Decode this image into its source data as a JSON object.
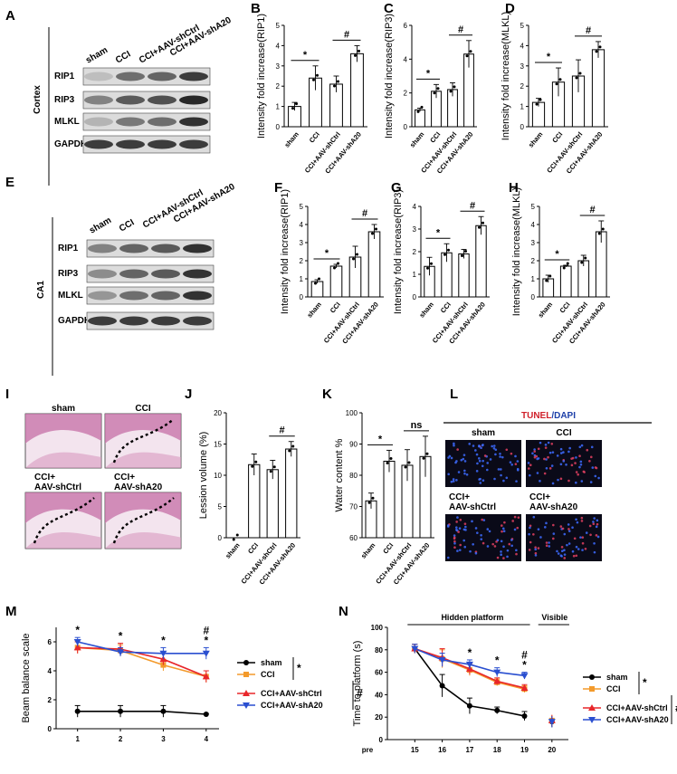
{
  "panels": {
    "A": "A",
    "B": "B",
    "C": "C",
    "D": "D",
    "E": "E",
    "F": "F",
    "G": "G",
    "H": "H",
    "I": "I",
    "J": "J",
    "K": "K",
    "L": "L",
    "M": "M",
    "N": "N"
  },
  "blots": {
    "cortex": {
      "region": "Cortex",
      "lanes": [
        "sham",
        "CCI",
        "CCI+AAV-shCtrl",
        "CCI+AAV-shA20"
      ],
      "bands": [
        "RIP1",
        "RIP3",
        "MLKL",
        "GAPDH"
      ],
      "intensity": [
        [
          0.15,
          0.55,
          0.6,
          0.8
        ],
        [
          0.45,
          0.65,
          0.7,
          0.9
        ],
        [
          0.2,
          0.5,
          0.55,
          0.85
        ],
        [
          0.8,
          0.8,
          0.8,
          0.8
        ]
      ]
    },
    "ca1": {
      "region": "CA1",
      "lanes": [
        "sham",
        "CCI",
        "CCI+AAV-shCtrl",
        "CCI+AAV-shA20"
      ],
      "bands": [
        "RIP1",
        "RIP3",
        "MLKL",
        "GAPDH"
      ],
      "intensity": [
        [
          0.45,
          0.6,
          0.65,
          0.85
        ],
        [
          0.4,
          0.6,
          0.65,
          0.85
        ],
        [
          0.35,
          0.55,
          0.6,
          0.85
        ],
        [
          0.8,
          0.8,
          0.8,
          0.8
        ]
      ]
    }
  },
  "images": {
    "lesion_labels": [
      "sham",
      "CCI",
      "CCI+\nAAV-shCtrl",
      "CCI+\nAAV-shA20"
    ],
    "tunel_title_a": "TUNEL",
    "tunel_title_b": "/DAPI",
    "tunel_labels": [
      "sham",
      "CCI",
      "CCI+\nAAV-shCtrl",
      "CCI+\nAAV-shA20"
    ]
  },
  "chart_data": [
    {
      "id": "B",
      "type": "bar",
      "categories": [
        "sham",
        "CCI",
        "CCI+AAV-shCtrl",
        "CCI+AAV-shA20"
      ],
      "values": [
        1.0,
        2.4,
        2.1,
        3.6
      ],
      "errors": [
        0.2,
        0.6,
        0.4,
        0.4
      ],
      "ylabel": "Intensity fold increase(RIP1)",
      "ylim": [
        0,
        5
      ],
      "yticks": [
        0,
        1,
        2,
        3,
        4,
        5
      ],
      "annotations": [
        {
          "text": "*",
          "from": 0,
          "to": 1
        },
        {
          "text": "#",
          "from": 2,
          "to": 3
        }
      ]
    },
    {
      "id": "C",
      "type": "bar",
      "categories": [
        "sham",
        "CCI",
        "CCI+AAV-shCtrl",
        "CCI+AAV-shA20"
      ],
      "values": [
        1.0,
        2.1,
        2.2,
        4.3
      ],
      "errors": [
        0.1,
        0.4,
        0.4,
        0.8
      ],
      "ylabel": "Intensity fold increase(RIP3)",
      "ylim": [
        0,
        6
      ],
      "yticks": [
        0,
        2,
        4,
        6
      ],
      "annotations": [
        {
          "text": "*",
          "from": 0,
          "to": 1
        },
        {
          "text": "#",
          "from": 2,
          "to": 3
        }
      ]
    },
    {
      "id": "D",
      "type": "bar",
      "categories": [
        "sham",
        "CCI",
        "CCI+AAV-shCtrl",
        "CCI+AAV-shA20"
      ],
      "values": [
        1.2,
        2.2,
        2.5,
        3.8
      ],
      "errors": [
        0.2,
        0.7,
        0.8,
        0.4
      ],
      "ylabel": "Intensity fold increase(MLKL)",
      "ylim": [
        0,
        5
      ],
      "yticks": [
        0,
        1,
        2,
        3,
        4,
        5
      ],
      "annotations": [
        {
          "text": "*",
          "from": 0,
          "to": 1
        },
        {
          "text": "#",
          "from": 2,
          "to": 3
        }
      ]
    },
    {
      "id": "F",
      "type": "bar",
      "categories": [
        "sham",
        "CCI",
        "CCI+AAV-shCtrl",
        "CCI+AAV-shA20"
      ],
      "values": [
        0.85,
        1.7,
        2.2,
        3.6
      ],
      "errors": [
        0.1,
        0.1,
        0.6,
        0.4
      ],
      "ylabel": "Intensity fold increase(RIP1)",
      "ylim": [
        0,
        5
      ],
      "yticks": [
        0,
        1,
        2,
        3,
        4,
        5
      ],
      "annotations": [
        {
          "text": "*",
          "from": 0,
          "to": 1
        },
        {
          "text": "#",
          "from": 2,
          "to": 3
        }
      ]
    },
    {
      "id": "G",
      "type": "bar",
      "categories": [
        "sham",
        "CCI",
        "CCI+AAV-shCtrl",
        "CCI+AAV-shA20"
      ],
      "values": [
        1.35,
        1.95,
        1.9,
        3.15
      ],
      "errors": [
        0.4,
        0.4,
        0.2,
        0.4
      ],
      "ylabel": "Intensity fold increase(RIP3)",
      "ylim": [
        0,
        4
      ],
      "yticks": [
        0,
        1,
        2,
        3,
        4
      ],
      "annotations": [
        {
          "text": "*",
          "from": 0,
          "to": 1
        },
        {
          "text": "#",
          "from": 2,
          "to": 3
        }
      ]
    },
    {
      "id": "H",
      "type": "bar",
      "categories": [
        "sham",
        "CCI",
        "CCI+AAV-shCtrl",
        "CCI+AAV-shA20"
      ],
      "values": [
        1.0,
        1.7,
        2.0,
        3.6
      ],
      "errors": [
        0.2,
        0.05,
        0.3,
        0.6
      ],
      "ylabel": "Intensity fold increase(MLKL)",
      "ylim": [
        0,
        5
      ],
      "yticks": [
        0,
        1,
        2,
        3,
        4,
        5
      ],
      "annotations": [
        {
          "text": "*",
          "from": 0,
          "to": 1
        },
        {
          "text": "#",
          "from": 2,
          "to": 3
        }
      ]
    },
    {
      "id": "J",
      "type": "bar",
      "categories": [
        "sham",
        "CCI",
        "CCI+AAV-shCtrl",
        "CCI+AAV-shA20"
      ],
      "values": [
        0,
        11.7,
        10.9,
        14.2
      ],
      "errors": [
        0,
        1.7,
        1.5,
        1.2
      ],
      "ylabel": "Lession volume (%)",
      "ylim": [
        0,
        20
      ],
      "yticks": [
        0,
        5,
        10,
        15,
        20
      ],
      "annotations": [
        {
          "text": "#",
          "from": 2,
          "to": 3
        }
      ]
    },
    {
      "id": "K",
      "type": "bar",
      "categories": [
        "sham",
        "CCI",
        "CCI+AAV-shCtrl",
        "CCI+AAV-shA20"
      ],
      "values": [
        71.8,
        84.5,
        83.2,
        86.0
      ],
      "errors": [
        2.5,
        3.5,
        5.0,
        6.5
      ],
      "ylabel": "Water content %",
      "ylim": [
        60,
        100
      ],
      "yticks": [
        60,
        70,
        80,
        90,
        100
      ],
      "annotations": [
        {
          "text": "*",
          "from": 0,
          "to": 1
        },
        {
          "text": "ns",
          "from": 2,
          "to": 3
        }
      ]
    },
    {
      "id": "M",
      "type": "line",
      "x": [
        1,
        2,
        3,
        4
      ],
      "xticks": [
        "1",
        "2",
        "3",
        "4"
      ],
      "ylabel": "Beam balance scale",
      "ylim": [
        0,
        7
      ],
      "yticks": [
        0,
        2,
        4,
        6
      ],
      "series": [
        {
          "name": "sham",
          "color": "#000000",
          "marker": "circle",
          "values": [
            1.2,
            1.2,
            1.2,
            1.0
          ],
          "errors": [
            0.4,
            0.4,
            0.4,
            0.05
          ]
        },
        {
          "name": "CCI",
          "color": "#f39a2b",
          "marker": "square",
          "values": [
            5.6,
            5.4,
            4.4,
            3.6
          ],
          "errors": [
            0.4,
            0.4,
            0.4,
            0.4
          ]
        },
        {
          "name": "CCI+AAV-shCtrl",
          "color": "#e8262a",
          "marker": "triangle",
          "values": [
            5.6,
            5.5,
            4.8,
            3.6
          ],
          "errors": [
            0.4,
            0.4,
            0.4,
            0.4
          ]
        },
        {
          "name": "CCI+AAV-shA20",
          "color": "#2a4fd0",
          "marker": "triangle-down",
          "values": [
            6.0,
            5.3,
            5.2,
            5.2
          ],
          "errors": [
            0.3,
            0.3,
            0.4,
            0.4
          ]
        }
      ],
      "point_marks": [
        {
          "x": 1,
          "text": "*"
        },
        {
          "x": 2,
          "text": "*"
        },
        {
          "x": 3,
          "text": "*"
        },
        {
          "x": 4,
          "text": "#\n*"
        }
      ],
      "legend_brackets": [
        {
          "text": "*"
        },
        {
          "text": "#"
        }
      ]
    },
    {
      "id": "N",
      "type": "line",
      "x": [
        15,
        16,
        17,
        18,
        19
      ],
      "xticks": [
        "pre",
        "15",
        "16",
        "17",
        "18",
        "19",
        "20"
      ],
      "ylabel": "Time to platform (s)",
      "ylim": [
        0,
        100
      ],
      "yticks": [
        0,
        20,
        40,
        60,
        80,
        100
      ],
      "section_labels": [
        "Hidden platform",
        "Visible"
      ],
      "series": [
        {
          "name": "sham",
          "color": "#000000",
          "marker": "circle",
          "values": [
            81,
            48,
            30,
            26,
            21
          ],
          "errors": [
            4,
            10,
            7,
            3,
            4
          ],
          "visible_value": 16
        },
        {
          "name": "CCI",
          "color": "#f39a2b",
          "marker": "square",
          "values": [
            81,
            72,
            62,
            51,
            45
          ],
          "errors": [
            4,
            8,
            5,
            3,
            3
          ],
          "visible_value": 17
        },
        {
          "name": "CCI+AAV-shCtrl",
          "color": "#e8262a",
          "marker": "triangle",
          "values": [
            81,
            73,
            63,
            52,
            46
          ],
          "errors": [
            4,
            8,
            5,
            3,
            3
          ],
          "visible_value": 17
        },
        {
          "name": "CCI+AAV-shA20",
          "color": "#2a4fd0",
          "marker": "triangle-down",
          "values": [
            81,
            71,
            67,
            60,
            57
          ],
          "errors": [
            4,
            6,
            4,
            4,
            3
          ],
          "visible_value": 16
        }
      ],
      "point_marks": [
        {
          "x": 17,
          "text": "*"
        },
        {
          "x": 18,
          "text": "*"
        },
        {
          "x": 19,
          "text": "#\n*"
        }
      ],
      "legend_brackets": [
        {
          "text": "*"
        },
        {
          "text": "#"
        }
      ]
    }
  ]
}
